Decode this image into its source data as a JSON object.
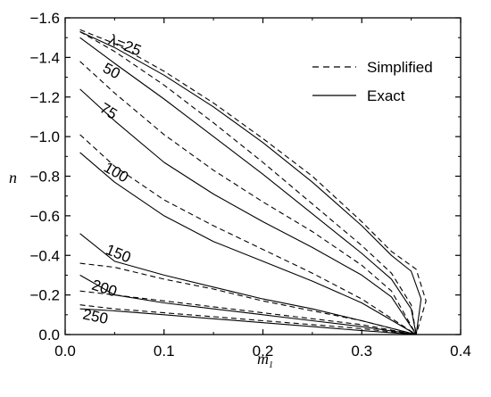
{
  "chart_data": {
    "type": "line",
    "xlabel": "m",
    "xlabel_subscript": "1",
    "ylabel": "n",
    "xlim": [
      0.0,
      0.4
    ],
    "ylim": [
      0.0,
      -1.6
    ],
    "x_ticks": [
      0.0,
      0.1,
      0.2,
      0.3,
      0.4
    ],
    "x_tick_labels": [
      "0.0",
      "0.1",
      "0.2",
      "0.3",
      "0.4"
    ],
    "y_ticks": [
      0.0,
      -0.2,
      -0.4,
      -0.6,
      -0.8,
      -1.0,
      -1.2,
      -1.4,
      -1.6
    ],
    "y_tick_labels": [
      "0.0",
      "−0.2",
      "−0.4",
      "−0.6",
      "−0.8",
      "−1.0",
      "−1.2",
      "−1.4",
      "−1.6"
    ],
    "grid": false,
    "legend": {
      "placement": "top-right",
      "entries": [
        {
          "label": "Simplified",
          "style": "dashed"
        },
        {
          "label": "Exact",
          "style": "solid"
        }
      ]
    },
    "curve_labels": [
      {
        "text": "λ=25",
        "x": 0.043,
        "y": -1.47,
        "angle": 22
      },
      {
        "text": "50",
        "x": 0.037,
        "y": -1.33,
        "angle": 28
      },
      {
        "text": "75",
        "x": 0.034,
        "y": -1.13,
        "angle": 32
      },
      {
        "text": "100",
        "x": 0.038,
        "y": -0.83,
        "angle": 30
      },
      {
        "text": "150",
        "x": 0.04,
        "y": -0.41,
        "angle": 22
      },
      {
        "text": "200",
        "x": 0.026,
        "y": -0.23,
        "angle": 18
      },
      {
        "text": "250",
        "x": 0.017,
        "y": -0.08,
        "angle": 12
      }
    ],
    "series": [
      {
        "lambda": "25",
        "style": "dashed",
        "x": [
          0.015,
          0.05,
          0.1,
          0.15,
          0.2,
          0.25,
          0.3,
          0.33,
          0.355,
          0.365,
          0.355
        ],
        "y": [
          -1.54,
          -1.47,
          -1.33,
          -1.17,
          -0.99,
          -0.8,
          -0.57,
          -0.42,
          -0.33,
          -0.17,
          0.0
        ]
      },
      {
        "lambda": "25",
        "style": "solid",
        "x": [
          0.015,
          0.05,
          0.1,
          0.15,
          0.2,
          0.25,
          0.3,
          0.33,
          0.35,
          0.36,
          0.355
        ],
        "y": [
          -1.53,
          -1.45,
          -1.31,
          -1.15,
          -0.97,
          -0.77,
          -0.55,
          -0.4,
          -0.32,
          -0.18,
          0.0
        ]
      },
      {
        "lambda": "50",
        "style": "dashed",
        "x": [
          0.015,
          0.05,
          0.1,
          0.15,
          0.2,
          0.25,
          0.3,
          0.33,
          0.35,
          0.355
        ],
        "y": [
          -1.53,
          -1.43,
          -1.26,
          -1.07,
          -0.87,
          -0.66,
          -0.45,
          -0.31,
          -0.15,
          0.0
        ]
      },
      {
        "lambda": "50",
        "style": "solid",
        "x": [
          0.015,
          0.05,
          0.1,
          0.15,
          0.2,
          0.25,
          0.3,
          0.33,
          0.35,
          0.355
        ],
        "y": [
          -1.5,
          -1.37,
          -1.19,
          -1.0,
          -0.81,
          -0.61,
          -0.41,
          -0.28,
          -0.13,
          0.0
        ]
      },
      {
        "lambda": "75",
        "style": "dashed",
        "x": [
          0.015,
          0.05,
          0.1,
          0.15,
          0.2,
          0.25,
          0.3,
          0.33,
          0.355
        ],
        "y": [
          -1.38,
          -1.22,
          -1.01,
          -0.83,
          -0.67,
          -0.52,
          -0.35,
          -0.22,
          0.0
        ]
      },
      {
        "lambda": "75",
        "style": "solid",
        "x": [
          0.015,
          0.05,
          0.1,
          0.15,
          0.2,
          0.25,
          0.3,
          0.33,
          0.355
        ],
        "y": [
          -1.24,
          -1.08,
          -0.87,
          -0.71,
          -0.57,
          -0.44,
          -0.3,
          -0.19,
          0.0
        ]
      },
      {
        "lambda": "100",
        "style": "dashed",
        "x": [
          0.015,
          0.05,
          0.1,
          0.15,
          0.2,
          0.25,
          0.3,
          0.355
        ],
        "y": [
          -1.01,
          -0.85,
          -0.68,
          -0.55,
          -0.43,
          -0.31,
          -0.18,
          0.0
        ]
      },
      {
        "lambda": "100",
        "style": "solid",
        "x": [
          0.015,
          0.05,
          0.1,
          0.15,
          0.2,
          0.25,
          0.3,
          0.355
        ],
        "y": [
          -0.92,
          -0.77,
          -0.6,
          -0.47,
          -0.37,
          -0.27,
          -0.16,
          0.0
        ]
      },
      {
        "lambda": "150",
        "style": "dashed",
        "x": [
          0.015,
          0.05,
          0.1,
          0.15,
          0.2,
          0.25,
          0.3,
          0.355
        ],
        "y": [
          -0.36,
          -0.34,
          -0.28,
          -0.23,
          -0.17,
          -0.12,
          -0.07,
          0.0
        ]
      },
      {
        "lambda": "150",
        "style": "solid",
        "x": [
          0.015,
          0.05,
          0.1,
          0.15,
          0.2,
          0.25,
          0.3,
          0.355
        ],
        "y": [
          -0.51,
          -0.37,
          -0.3,
          -0.24,
          -0.18,
          -0.13,
          -0.07,
          0.0
        ]
      },
      {
        "lambda": "200",
        "style": "dashed",
        "x": [
          0.015,
          0.05,
          0.1,
          0.15,
          0.2,
          0.25,
          0.3,
          0.355
        ],
        "y": [
          -0.22,
          -0.2,
          -0.17,
          -0.14,
          -0.11,
          -0.08,
          -0.05,
          0.0
        ]
      },
      {
        "lambda": "200",
        "style": "solid",
        "x": [
          0.015,
          0.05,
          0.1,
          0.15,
          0.2,
          0.25,
          0.3,
          0.355
        ],
        "y": [
          -0.3,
          -0.2,
          -0.16,
          -0.13,
          -0.1,
          -0.07,
          -0.04,
          0.0
        ]
      },
      {
        "lambda": "250",
        "style": "dashed",
        "x": [
          0.015,
          0.05,
          0.1,
          0.15,
          0.2,
          0.25,
          0.3,
          0.355
        ],
        "y": [
          -0.15,
          -0.13,
          -0.11,
          -0.09,
          -0.07,
          -0.05,
          -0.03,
          0.0
        ]
      },
      {
        "lambda": "250",
        "style": "solid",
        "x": [
          0.015,
          0.05,
          0.1,
          0.15,
          0.2,
          0.25,
          0.3,
          0.355
        ],
        "y": [
          -0.13,
          -0.12,
          -0.1,
          -0.08,
          -0.06,
          -0.04,
          -0.02,
          0.0
        ]
      }
    ]
  }
}
